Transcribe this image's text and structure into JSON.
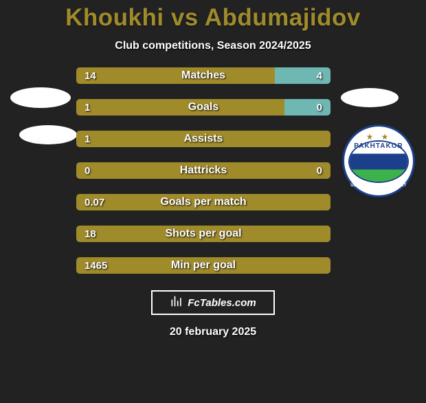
{
  "title": "Khoukhi vs Abdumajidov",
  "subtitle": "Club competitions, Season 2024/2025",
  "date": "20 february 2025",
  "brand": "FcTables.com",
  "colors": {
    "bg": "#222223",
    "accent_olive": "#a08b2b",
    "accent_teal": "#6fb7b3",
    "text": "#ffffff",
    "crest_blue": "#1b3f8a",
    "crest_green": "#3bb24a"
  },
  "crest": {
    "name_top": "PAKHTAKOR",
    "name_bottom": "UZBEKISTAN TASHKENT"
  },
  "rows": [
    {
      "label": "Matches",
      "left": "14",
      "right": "4",
      "left_pct": 78,
      "left_color": "#a08b2b",
      "right_color": "#6fb7b3",
      "show_right": true
    },
    {
      "label": "Goals",
      "left": "1",
      "right": "0",
      "left_pct": 82,
      "left_color": "#a08b2b",
      "right_color": "#6fb7b3",
      "show_right": true
    },
    {
      "label": "Assists",
      "left": "1",
      "right": "",
      "left_pct": 100,
      "left_color": "#a08b2b",
      "right_color": "#6fb7b3",
      "show_right": false
    },
    {
      "label": "Hattricks",
      "left": "0",
      "right": "0",
      "left_pct": 50,
      "left_color": "#a08b2b",
      "right_color": "#a08b2b",
      "show_right": true
    },
    {
      "label": "Goals per match",
      "left": "0.07",
      "right": "",
      "left_pct": 100,
      "left_color": "#a08b2b",
      "right_color": "#6fb7b3",
      "show_right": false
    },
    {
      "label": "Shots per goal",
      "left": "18",
      "right": "",
      "left_pct": 100,
      "left_color": "#a08b2b",
      "right_color": "#6fb7b3",
      "show_right": false
    },
    {
      "label": "Min per goal",
      "left": "1465",
      "right": "",
      "left_pct": 100,
      "left_color": "#a08b2b",
      "right_color": "#6fb7b3",
      "show_right": false
    }
  ]
}
